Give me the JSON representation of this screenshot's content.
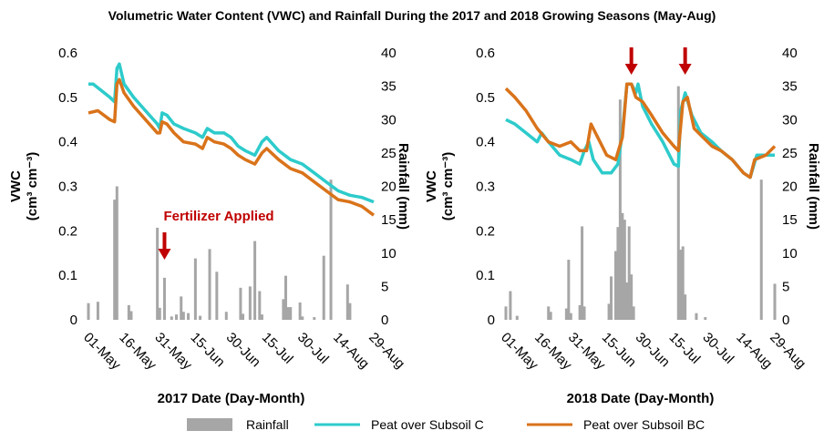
{
  "title": "Volumetric Water Content (VWC) and Rainfall During the 2017 and 2018  Growing Seasons (May-Aug)",
  "chart_data": [
    {
      "type": "line",
      "x_label": "2017 Date (Day-Month)",
      "y_label": "VWC",
      "y_label_units": "(cm³ cm⁻³)",
      "y2_label": "Rainfall (mm)",
      "xlim": [
        "2017-05-01",
        "2017-08-29"
      ],
      "xticks": [
        {
          "value": "2017-05-01",
          "label": "01-May"
        },
        {
          "value": "2017-05-16",
          "label": "16-May"
        },
        {
          "value": "2017-05-31",
          "label": "31-May"
        },
        {
          "value": "2017-06-15",
          "label": "15-Jun"
        },
        {
          "value": "2017-06-30",
          "label": "30-Jun"
        },
        {
          "value": "2017-07-15",
          "label": "15-Jul"
        },
        {
          "value": "2017-07-30",
          "label": "30-Jul"
        },
        {
          "value": "2017-08-14",
          "label": "14-Aug"
        },
        {
          "value": "2017-08-29",
          "label": "29-Aug"
        }
      ],
      "ylim": [
        0,
        0.6
      ],
      "yticks": [
        0,
        0.1,
        0.2,
        0.3,
        0.4,
        0.5,
        0.6
      ],
      "y2lim": [
        0,
        40
      ],
      "y2ticks": [
        0,
        5,
        10,
        15,
        20,
        25,
        30,
        35,
        40
      ],
      "series": [
        {
          "name": "Rainfall",
          "type": "bar",
          "axis": "y2",
          "color": "#a6a6a6",
          "x": [
            "2017-05-01",
            "2017-05-05",
            "2017-05-12",
            "2017-05-13",
            "2017-05-18",
            "2017-05-19",
            "2017-05-30",
            "2017-05-31",
            "2017-06-02",
            "2017-06-05",
            "2017-06-07",
            "2017-06-09",
            "2017-06-10",
            "2017-06-12",
            "2017-06-15",
            "2017-06-17",
            "2017-06-21",
            "2017-06-24",
            "2017-06-28",
            "2017-07-04",
            "2017-07-05",
            "2017-07-08",
            "2017-07-10",
            "2017-07-12",
            "2017-07-13",
            "2017-07-22",
            "2017-07-23",
            "2017-07-24",
            "2017-07-25",
            "2017-07-29",
            "2017-07-30",
            "2017-08-04",
            "2017-08-08",
            "2017-08-11",
            "2017-08-18",
            "2017-08-19"
          ],
          "values": [
            2.5,
            2.7,
            18,
            20,
            2.2,
            1.3,
            13.8,
            1.8,
            6.3,
            0.5,
            0.8,
            3.5,
            1.2,
            1.0,
            9.2,
            0.6,
            10.6,
            7.2,
            1.2,
            4.8,
            0.9,
            5.0,
            11.8,
            4.3,
            0.8,
            3.1,
            6.6,
            1.9,
            1.9,
            2.6,
            0.5,
            0.4,
            9.6,
            21,
            5.3,
            2.5
          ]
        },
        {
          "name": "Peat over Subsoil C",
          "color": "#2ecbcb",
          "x": [
            "2017-05-01",
            "2017-05-03",
            "2017-05-10",
            "2017-05-12",
            "2017-05-13",
            "2017-05-14",
            "2017-05-16",
            "2017-05-20",
            "2017-05-25",
            "2017-05-30",
            "2017-05-31",
            "2017-06-01",
            "2017-06-03",
            "2017-06-06",
            "2017-06-10",
            "2017-06-15",
            "2017-06-18",
            "2017-06-20",
            "2017-06-23",
            "2017-06-27",
            "2017-06-30",
            "2017-07-03",
            "2017-07-06",
            "2017-07-10",
            "2017-07-13",
            "2017-07-15",
            "2017-07-20",
            "2017-07-25",
            "2017-07-30",
            "2017-08-04",
            "2017-08-09",
            "2017-08-14",
            "2017-08-19",
            "2017-08-24",
            "2017-08-29"
          ],
          "values": [
            0.53,
            0.53,
            0.5,
            0.49,
            0.565,
            0.575,
            0.53,
            0.5,
            0.47,
            0.44,
            0.43,
            0.465,
            0.46,
            0.44,
            0.43,
            0.42,
            0.41,
            0.43,
            0.42,
            0.42,
            0.41,
            0.39,
            0.38,
            0.37,
            0.4,
            0.41,
            0.38,
            0.36,
            0.35,
            0.33,
            0.31,
            0.29,
            0.28,
            0.275,
            0.265
          ]
        },
        {
          "name": "Peat over Subsoil BC",
          "color": "#d9731a",
          "x": [
            "2017-05-01",
            "2017-05-05",
            "2017-05-10",
            "2017-05-12",
            "2017-05-13",
            "2017-05-14",
            "2017-05-16",
            "2017-05-20",
            "2017-05-25",
            "2017-05-30",
            "2017-05-31",
            "2017-06-01",
            "2017-06-03",
            "2017-06-06",
            "2017-06-10",
            "2017-06-15",
            "2017-06-18",
            "2017-06-20",
            "2017-06-23",
            "2017-06-27",
            "2017-06-30",
            "2017-07-03",
            "2017-07-06",
            "2017-07-10",
            "2017-07-13",
            "2017-07-15",
            "2017-07-20",
            "2017-07-25",
            "2017-07-30",
            "2017-08-04",
            "2017-08-09",
            "2017-08-14",
            "2017-08-19",
            "2017-08-24",
            "2017-08-29"
          ],
          "values": [
            0.465,
            0.47,
            0.45,
            0.445,
            0.53,
            0.54,
            0.51,
            0.48,
            0.45,
            0.42,
            0.42,
            0.445,
            0.44,
            0.42,
            0.4,
            0.395,
            0.385,
            0.41,
            0.4,
            0.395,
            0.385,
            0.37,
            0.36,
            0.35,
            0.375,
            0.385,
            0.36,
            0.34,
            0.33,
            0.31,
            0.29,
            0.27,
            0.265,
            0.255,
            0.235
          ]
        }
      ],
      "annotations": [
        {
          "text": "Fertilizer Applied",
          "x": "2017-06-02",
          "color": "#c00000"
        }
      ]
    },
    {
      "type": "line",
      "x_label": "2018 Date (Day-Month)",
      "y_label": "VWC",
      "y_label_units": "(cm³ cm⁻³)",
      "y2_label": "Rainfall (mm)",
      "xlim": [
        "2018-05-01",
        "2018-08-29"
      ],
      "xticks": [
        {
          "value": "2018-05-01",
          "label": "01-May"
        },
        {
          "value": "2018-05-16",
          "label": "16-May"
        },
        {
          "value": "2018-05-31",
          "label": "31-May"
        },
        {
          "value": "2018-06-15",
          "label": "15-Jun"
        },
        {
          "value": "2018-06-30",
          "label": "30-Jun"
        },
        {
          "value": "2018-07-15",
          "label": "15-Jul"
        },
        {
          "value": "2018-07-30",
          "label": "30-Jul"
        },
        {
          "value": "2018-08-14",
          "label": "14-Aug"
        },
        {
          "value": "2018-08-29",
          "label": "29-Aug"
        }
      ],
      "ylim": [
        0,
        0.6
      ],
      "yticks": [
        0,
        0.1,
        0.2,
        0.3,
        0.4,
        0.5,
        0.6
      ],
      "y2lim": [
        0,
        40
      ],
      "y2ticks": [
        0,
        5,
        10,
        15,
        20,
        25,
        30,
        35,
        40
      ],
      "series": [
        {
          "type": "bar",
          "axis": "y2",
          "color": "#a6a6a6",
          "x": [
            "2018-05-01",
            "2018-05-03",
            "2018-05-06",
            "2018-05-20",
            "2018-05-21",
            "2018-05-28",
            "2018-05-29",
            "2018-05-30",
            "2018-06-03",
            "2018-06-04",
            "2018-06-05",
            "2018-06-16",
            "2018-06-17",
            "2018-06-19",
            "2018-06-20",
            "2018-06-21",
            "2018-06-22",
            "2018-06-23",
            "2018-06-24",
            "2018-06-25",
            "2018-06-26",
            "2018-06-27",
            "2018-07-17",
            "2018-07-18",
            "2018-07-19",
            "2018-07-20",
            "2018-07-25",
            "2018-07-29",
            "2018-08-23",
            "2018-08-29"
          ],
          "values": [
            2,
            4.3,
            0.6,
            2,
            1.2,
            1.7,
            9,
            1,
            2.2,
            14,
            2,
            2.4,
            6.5,
            10.3,
            13.9,
            33,
            16,
            15,
            5.6,
            14,
            6.8,
            2,
            35,
            10.5,
            11,
            3.8,
            1,
            0.4,
            21,
            5.4
          ]
        },
        {
          "color": "#2ecbcb",
          "x": [
            "2018-05-01",
            "2018-05-05",
            "2018-05-10",
            "2018-05-15",
            "2018-05-17",
            "2018-05-20",
            "2018-05-25",
            "2018-05-30",
            "2018-06-03",
            "2018-06-05",
            "2018-06-07",
            "2018-06-09",
            "2018-06-13",
            "2018-06-17",
            "2018-06-20",
            "2018-06-22",
            "2018-06-24",
            "2018-06-26",
            "2018-06-28",
            "2018-06-29",
            "2018-07-01",
            "2018-07-05",
            "2018-07-10",
            "2018-07-15",
            "2018-07-17",
            "2018-07-18",
            "2018-07-20",
            "2018-07-23",
            "2018-07-27",
            "2018-08-01",
            "2018-08-05",
            "2018-08-10",
            "2018-08-15",
            "2018-08-18",
            "2018-08-21",
            "2018-08-25",
            "2018-08-29"
          ],
          "values": [
            0.45,
            0.44,
            0.42,
            0.4,
            0.42,
            0.4,
            0.37,
            0.36,
            0.35,
            0.38,
            0.4,
            0.36,
            0.33,
            0.33,
            0.35,
            0.42,
            0.53,
            0.53,
            0.51,
            0.53,
            0.48,
            0.44,
            0.4,
            0.35,
            0.345,
            0.47,
            0.51,
            0.46,
            0.42,
            0.4,
            0.38,
            0.36,
            0.33,
            0.32,
            0.37,
            0.37,
            0.37
          ]
        },
        {
          "color": "#d9731a",
          "x": [
            "2018-05-01",
            "2018-05-05",
            "2018-05-10",
            "2018-05-15",
            "2018-05-20",
            "2018-05-25",
            "2018-05-30",
            "2018-06-03",
            "2018-06-06",
            "2018-06-08",
            "2018-06-10",
            "2018-06-15",
            "2018-06-19",
            "2018-06-22",
            "2018-06-24",
            "2018-06-26",
            "2018-06-28",
            "2018-07-01",
            "2018-07-05",
            "2018-07-10",
            "2018-07-15",
            "2018-07-17",
            "2018-07-19",
            "2018-07-21",
            "2018-07-24",
            "2018-07-28",
            "2018-08-01",
            "2018-08-05",
            "2018-08-10",
            "2018-08-15",
            "2018-08-18",
            "2018-08-20",
            "2018-08-25",
            "2018-08-29"
          ],
          "values": [
            0.52,
            0.5,
            0.47,
            0.43,
            0.4,
            0.39,
            0.4,
            0.38,
            0.38,
            0.44,
            0.42,
            0.37,
            0.36,
            0.41,
            0.53,
            0.53,
            0.5,
            0.49,
            0.46,
            0.42,
            0.39,
            0.38,
            0.49,
            0.5,
            0.43,
            0.41,
            0.39,
            0.38,
            0.36,
            0.33,
            0.32,
            0.36,
            0.37,
            0.39
          ]
        }
      ],
      "annotations": [
        {
          "x": "2018-06-26",
          "color": "#c00000"
        },
        {
          "x": "2018-07-20",
          "color": "#c00000"
        }
      ]
    }
  ]
}
